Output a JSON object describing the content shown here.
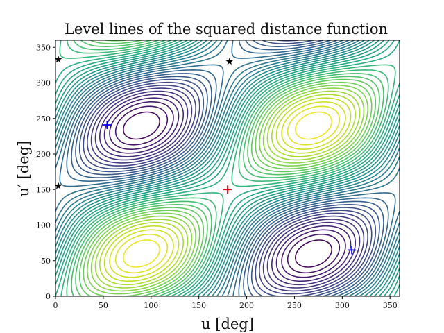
{
  "chart_data": {
    "type": "contour",
    "title": "Level lines of the squared distance function",
    "xlabel": "u [deg]",
    "ylabel": "u′ [deg]",
    "xlim": [
      0,
      360
    ],
    "ylim": [
      0,
      360
    ],
    "xticks": [
      0,
      50,
      100,
      150,
      200,
      250,
      300,
      350
    ],
    "yticks": [
      0,
      50,
      100,
      150,
      200,
      250,
      300,
      350
    ],
    "grid": false,
    "colormap": "viridis",
    "contour_levels": 40,
    "global_maximum": {
      "u": 180,
      "u_prime": 150,
      "marker": "+",
      "color": "#e8000b"
    },
    "local_minima": [
      {
        "u": 54,
        "u_prime": 241,
        "marker": "+",
        "color": "#0000ff"
      },
      {
        "u": 310,
        "u_prime": 65,
        "marker": "+",
        "color": "#0000ff"
      }
    ],
    "saddle_points": [
      {
        "u": 3,
        "u_prime": 333,
        "marker": "star",
        "color": "#000000"
      },
      {
        "u": 182,
        "u_prime": 330,
        "marker": "star",
        "color": "#000000"
      },
      {
        "u": 3,
        "u_prime": 155,
        "marker": "star",
        "color": "#000000"
      }
    ]
  }
}
